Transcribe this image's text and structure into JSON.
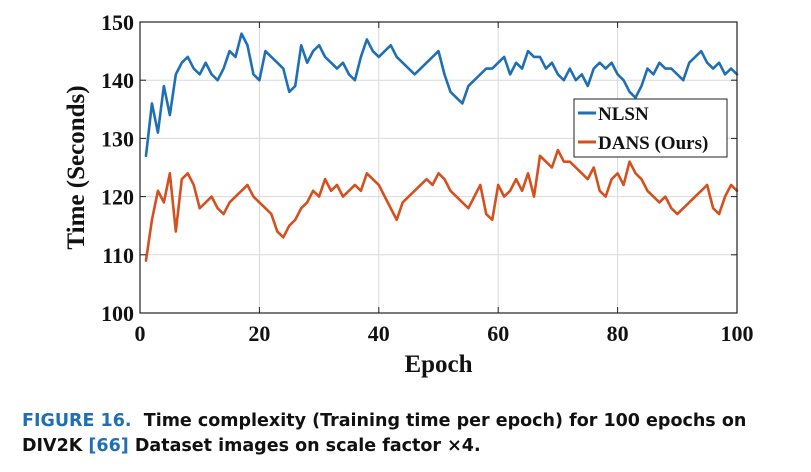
{
  "chart_data": {
    "type": "line",
    "title": "",
    "xlabel": "Epoch",
    "ylabel": "Time (Seconds)",
    "xlim": [
      0,
      100
    ],
    "ylim": [
      100,
      150
    ],
    "xticks": [
      0,
      20,
      40,
      60,
      80,
      100
    ],
    "yticks": [
      100,
      110,
      120,
      130,
      140,
      150
    ],
    "grid": true,
    "legend_position": "right",
    "series": [
      {
        "name": "NLSN",
        "color": "#1f6fb5",
        "x": [
          1,
          2,
          3,
          4,
          5,
          6,
          7,
          8,
          9,
          10,
          11,
          12,
          13,
          14,
          15,
          16,
          17,
          18,
          19,
          20,
          21,
          22,
          23,
          24,
          25,
          26,
          27,
          28,
          29,
          30,
          31,
          32,
          33,
          34,
          35,
          36,
          37,
          38,
          39,
          40,
          41,
          42,
          43,
          44,
          45,
          46,
          47,
          48,
          49,
          50,
          51,
          52,
          53,
          54,
          55,
          56,
          57,
          58,
          59,
          60,
          61,
          62,
          63,
          64,
          65,
          66,
          67,
          68,
          69,
          70,
          71,
          72,
          73,
          74,
          75,
          76,
          77,
          78,
          79,
          80,
          81,
          82,
          83,
          84,
          85,
          86,
          87,
          88,
          89,
          90,
          91,
          92,
          93,
          94,
          95,
          96,
          97,
          98,
          99,
          100
        ],
        "values": [
          127,
          136,
          131,
          139,
          134,
          141,
          143,
          144,
          142,
          141,
          143,
          141,
          140,
          142,
          145,
          144,
          148,
          146,
          141,
          140,
          145,
          144,
          143,
          142,
          138,
          139,
          146,
          143,
          145,
          146,
          144,
          143,
          142,
          143,
          141,
          140,
          144,
          147,
          145,
          144,
          145,
          146,
          144,
          143,
          142,
          141,
          142,
          143,
          144,
          145,
          141,
          138,
          137,
          136,
          139,
          140,
          141,
          142,
          142,
          143,
          144,
          141,
          143,
          142,
          145,
          144,
          144,
          142,
          143,
          141,
          140,
          142,
          140,
          141,
          139,
          142,
          143,
          142,
          143,
          141,
          140,
          138,
          137,
          139,
          142,
          141,
          143,
          142,
          142,
          141,
          140,
          143,
          144,
          145,
          143,
          142,
          143,
          141,
          142,
          141
        ]
      },
      {
        "name": "DANS (Ours)",
        "color": "#d4501f",
        "x": [
          1,
          2,
          3,
          4,
          5,
          6,
          7,
          8,
          9,
          10,
          11,
          12,
          13,
          14,
          15,
          16,
          17,
          18,
          19,
          20,
          21,
          22,
          23,
          24,
          25,
          26,
          27,
          28,
          29,
          30,
          31,
          32,
          33,
          34,
          35,
          36,
          37,
          38,
          39,
          40,
          41,
          42,
          43,
          44,
          45,
          46,
          47,
          48,
          49,
          50,
          51,
          52,
          53,
          54,
          55,
          56,
          57,
          58,
          59,
          60,
          61,
          62,
          63,
          64,
          65,
          66,
          67,
          68,
          69,
          70,
          71,
          72,
          73,
          74,
          75,
          76,
          77,
          78,
          79,
          80,
          81,
          82,
          83,
          84,
          85,
          86,
          87,
          88,
          89,
          90,
          91,
          92,
          93,
          94,
          95,
          96,
          97,
          98,
          99,
          100
        ],
        "values": [
          109,
          116,
          121,
          119,
          124,
          114,
          123,
          124,
          122,
          118,
          119,
          120,
          118,
          117,
          119,
          120,
          121,
          122,
          120,
          119,
          118,
          117,
          114,
          113,
          115,
          116,
          118,
          119,
          121,
          120,
          123,
          121,
          122,
          120,
          121,
          122,
          121,
          124,
          123,
          122,
          120,
          118,
          116,
          119,
          120,
          121,
          122,
          123,
          122,
          124,
          123,
          121,
          120,
          119,
          118,
          120,
          122,
          117,
          116,
          122,
          120,
          121,
          123,
          121,
          124,
          120,
          127,
          126,
          125,
          128,
          126,
          126,
          125,
          124,
          123,
          125,
          121,
          120,
          123,
          124,
          122,
          126,
          124,
          123,
          121,
          120,
          119,
          120,
          118,
          117,
          118,
          119,
          120,
          121,
          122,
          118,
          117,
          120,
          122,
          121
        ]
      }
    ]
  },
  "caption": {
    "label": "FIGURE 16.",
    "text_before_ref": "Time complexity (Training time per epoch) for 100 epochs on DIV2K",
    "ref": "[66]",
    "text_after_ref": "Dataset images on scale factor ×4."
  }
}
